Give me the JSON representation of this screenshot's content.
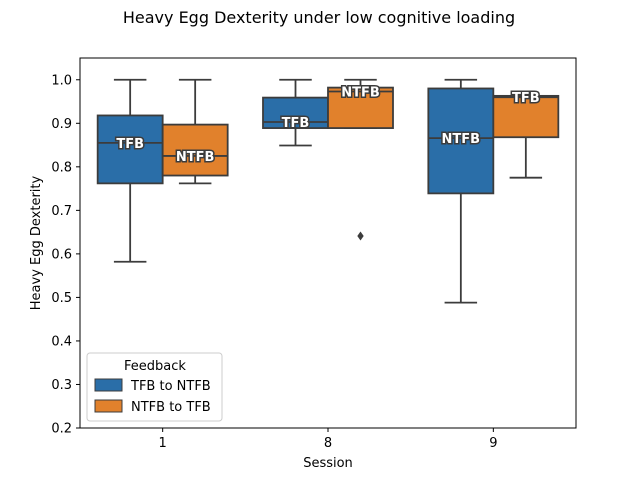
{
  "chart_data": {
    "type": "box",
    "title": "Heavy Egg Dexterity under low cognitive loading",
    "xlabel": "Session",
    "ylabel": "Heavy Egg Dexterity",
    "ylim": [
      0.2,
      1.05
    ],
    "yticks": [
      "0.2",
      "0.3",
      "0.4",
      "0.5",
      "0.6",
      "0.7",
      "0.8",
      "0.9",
      "1.0"
    ],
    "categories": [
      "1",
      "8",
      "9"
    ],
    "grid": false,
    "legend": {
      "title": "Feedback",
      "placement": "lower-left"
    },
    "series": [
      {
        "name": "TFB to NTFB",
        "color": "#2a6ea8",
        "boxes": [
          {
            "whislo": 0.582,
            "q1": 0.762,
            "med": 0.855,
            "q3": 0.918,
            "whishi": 1.0,
            "fliers": [],
            "label": "TFB"
          },
          {
            "whislo": 0.849,
            "q1": 0.889,
            "med": 0.903,
            "q3": 0.959,
            "whishi": 1.0,
            "fliers": [],
            "label": "TFB"
          },
          {
            "whislo": 0.488,
            "q1": 0.739,
            "med": 0.866,
            "q3": 0.98,
            "whishi": 1.0,
            "fliers": [],
            "label": "NTFB"
          }
        ]
      },
      {
        "name": "NTFB to TFB",
        "color": "#e1812c",
        "boxes": [
          {
            "whislo": 0.762,
            "q1": 0.78,
            "med": 0.825,
            "q3": 0.897,
            "whishi": 1.0,
            "fliers": [],
            "label": "NTFB"
          },
          {
            "whislo": 0.889,
            "q1": 0.889,
            "med": 0.973,
            "q3": 0.982,
            "whishi": 1.0,
            "fliers": [
              0.641
            ],
            "label": "NTFB"
          },
          {
            "whislo": 0.775,
            "q1": 0.868,
            "med": 0.96,
            "q3": 0.963,
            "whishi": 0.963,
            "fliers": [],
            "label": "TFB"
          }
        ]
      }
    ]
  }
}
